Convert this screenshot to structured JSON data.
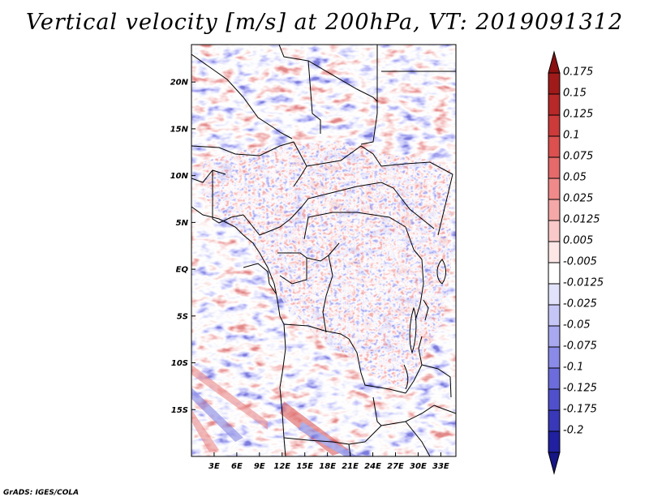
{
  "title": "Vertical velocity [m/s] at 200hPa, VT: 2019091312",
  "footer": "GrADS: IGES/COLA",
  "chart_data": {
    "type": "heatmap",
    "variable": "Vertical velocity",
    "units": "m/s",
    "level": "200hPa",
    "valid_time": "2019091312",
    "lon_range": [
      0,
      35
    ],
    "lat_range": [
      -20,
      24
    ],
    "x_ticks": [
      {
        "lon": 3,
        "label": "3E"
      },
      {
        "lon": 6,
        "label": "6E"
      },
      {
        "lon": 9,
        "label": "9E"
      },
      {
        "lon": 12,
        "label": "12E"
      },
      {
        "lon": 15,
        "label": "15E"
      },
      {
        "lon": 18,
        "label": "18E"
      },
      {
        "lon": 21,
        "label": "21E"
      },
      {
        "lon": 24,
        "label": "24E"
      },
      {
        "lon": 27,
        "label": "27E"
      },
      {
        "lon": 30,
        "label": "30E"
      },
      {
        "lon": 33,
        "label": "33E"
      }
    ],
    "y_ticks": [
      {
        "lat": 20,
        "label": "20N"
      },
      {
        "lat": 15,
        "label": "15N"
      },
      {
        "lat": 10,
        "label": "10N"
      },
      {
        "lat": 5,
        "label": "5N"
      },
      {
        "lat": 0,
        "label": "EQ"
      },
      {
        "lat": -5,
        "label": "5S"
      },
      {
        "lat": -10,
        "label": "10S"
      },
      {
        "lat": -15,
        "label": "15S"
      }
    ],
    "colorbar": {
      "levels": [
        {
          "label": "0.175",
          "color": "#a01a1a"
        },
        {
          "label": "0.15",
          "color": "#b72828"
        },
        {
          "label": "0.125",
          "color": "#cc3a3a"
        },
        {
          "label": "0.1",
          "color": "#dc5050"
        },
        {
          "label": "0.075",
          "color": "#e66a6a"
        },
        {
          "label": "0.05",
          "color": "#f08a8a"
        },
        {
          "label": "0.025",
          "color": "#f5a8a8"
        },
        {
          "label": "0.0125",
          "color": "#f9c8c8"
        },
        {
          "label": "0.005",
          "color": "#fde6e6"
        },
        {
          "label": "-0.005",
          "color": "#ffffff"
        },
        {
          "label": "-0.0125",
          "color": "#e2e2fb"
        },
        {
          "label": "-0.025",
          "color": "#c6c6f6"
        },
        {
          "label": "-0.05",
          "color": "#a8a8f0"
        },
        {
          "label": "-0.075",
          "color": "#8a8ae8"
        },
        {
          "label": "-0.1",
          "color": "#6c6cdc"
        },
        {
          "label": "-0.125",
          "color": "#5050cc"
        },
        {
          "label": "-0.175",
          "color": "#3838b8"
        },
        {
          "label": "-0.2",
          "color": "#2020a0"
        }
      ],
      "top_arrow_color": "#8a1010",
      "bottom_arrow_color": "#151585"
    }
  }
}
